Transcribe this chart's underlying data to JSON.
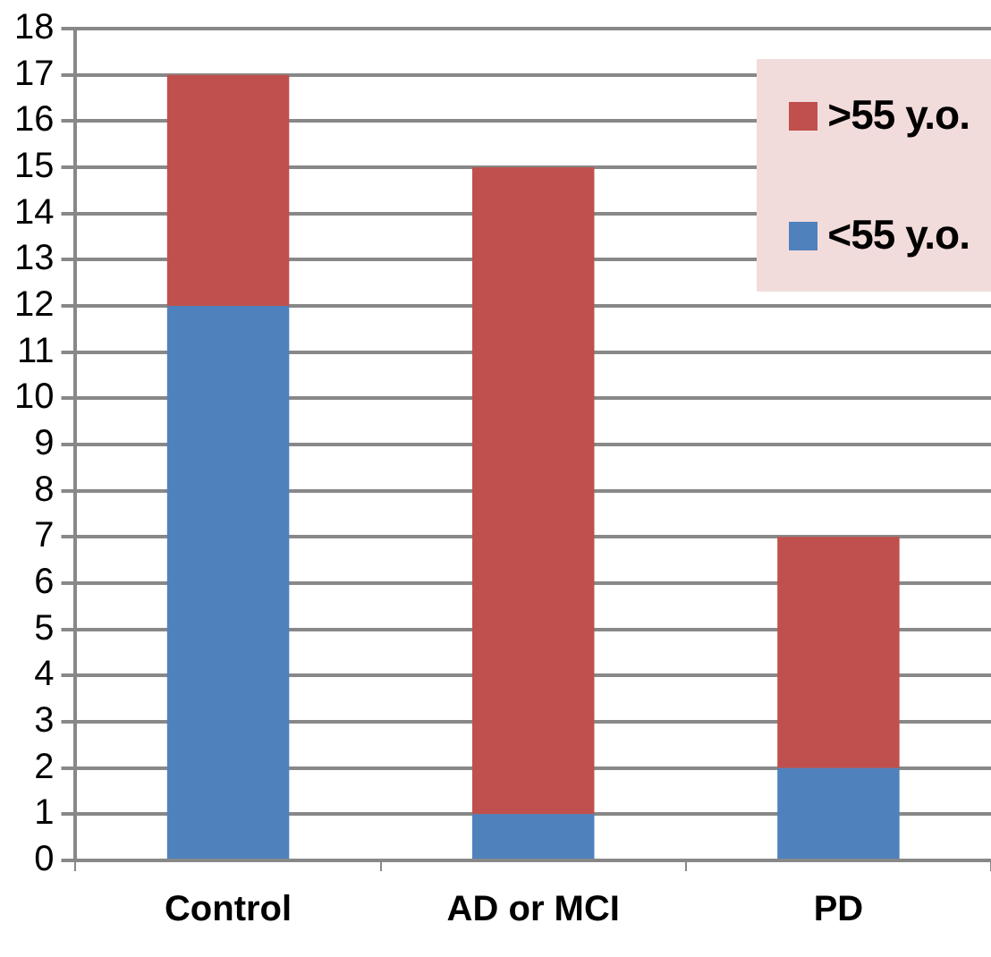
{
  "chart_data": {
    "type": "bar",
    "stacked": true,
    "categories": [
      "Control",
      "AD or MCI",
      "PD"
    ],
    "series": [
      {
        "name": "<55 y.o.",
        "color": "#4f81bd",
        "values": [
          12,
          1,
          2
        ]
      },
      {
        "name": ">55 y.o.",
        "color": "#c0504d",
        "values": [
          5,
          14,
          5
        ]
      }
    ],
    "ylim": [
      0,
      18
    ],
    "yticks": [
      0,
      1,
      2,
      3,
      4,
      5,
      6,
      7,
      8,
      9,
      10,
      11,
      12,
      13,
      14,
      15,
      16,
      17,
      18
    ],
    "grid": "y",
    "legend": "top right"
  }
}
